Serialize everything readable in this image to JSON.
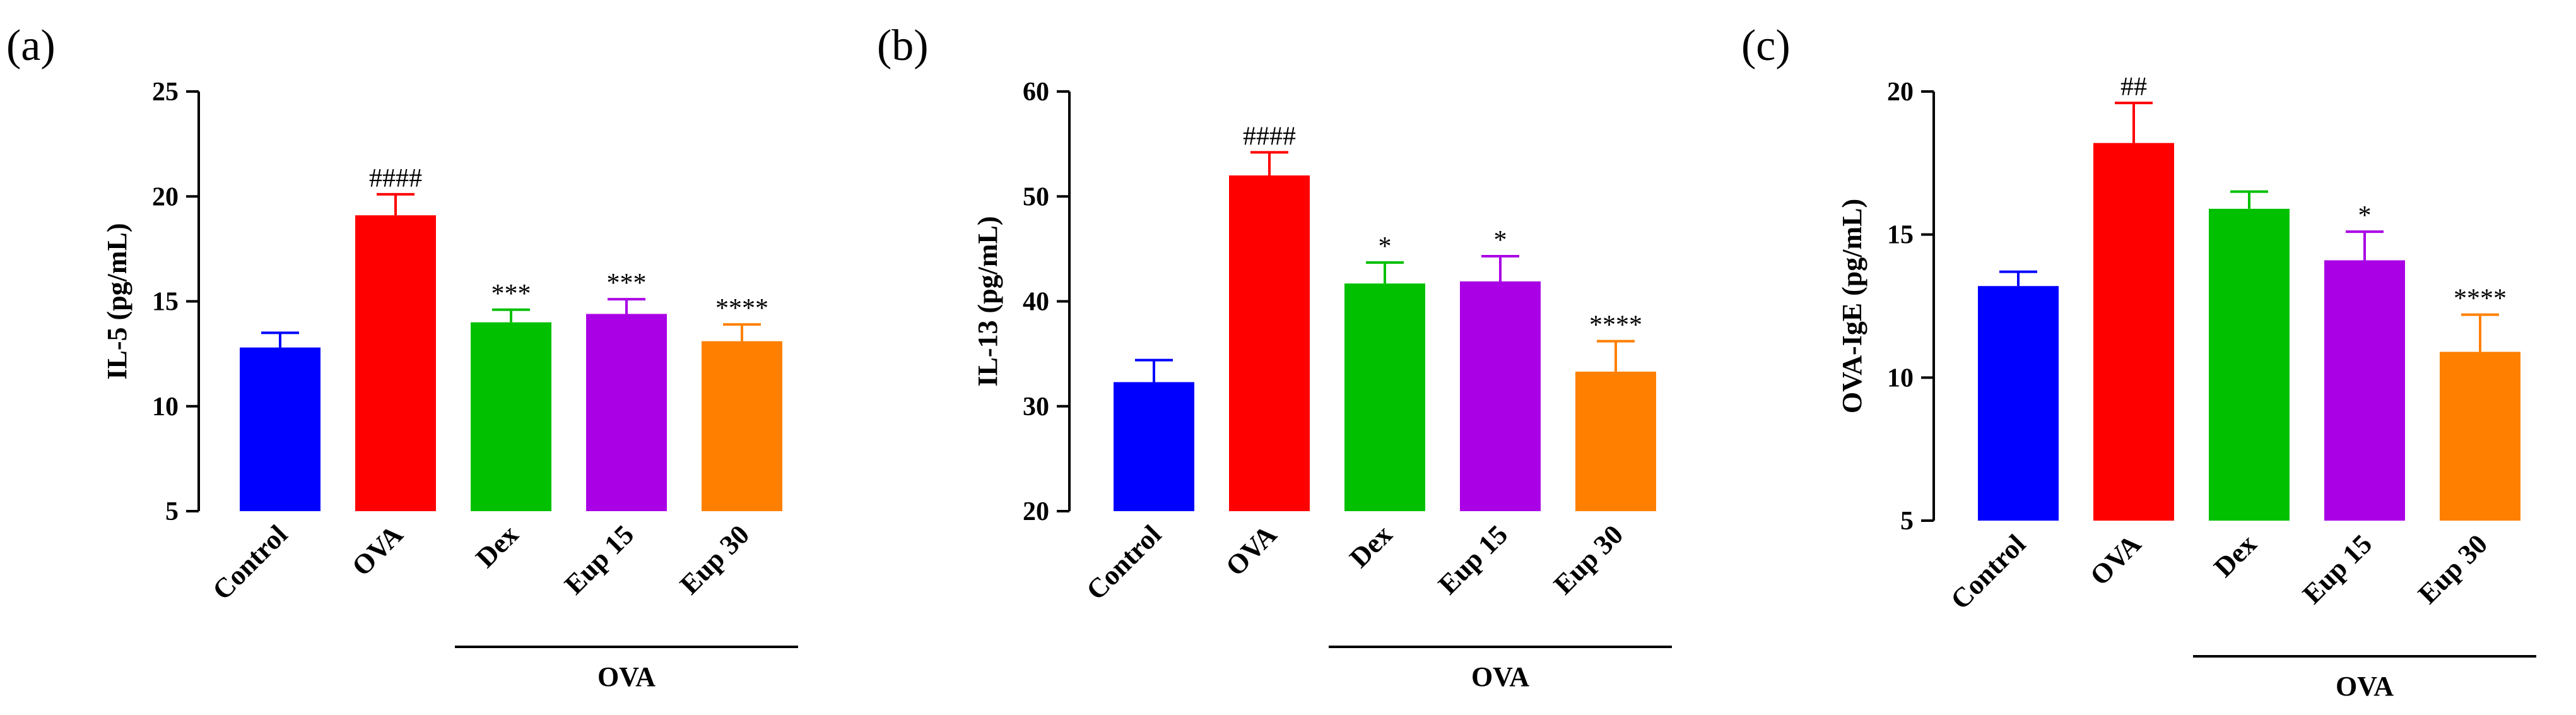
{
  "chart_data": [
    {
      "type": "bar",
      "panel": "(a)",
      "ylabel": "IL-5 (pg/mL)",
      "ylim": [
        5,
        25
      ],
      "yticks": [
        5,
        10,
        15,
        20,
        25
      ],
      "categories": [
        "Control",
        "OVA",
        "Dex",
        "Eup 15",
        "Eup 30"
      ],
      "values": [
        12.8,
        19.1,
        14.0,
        14.4,
        13.1
      ],
      "errors": [
        0.7,
        1.0,
        0.6,
        0.7,
        0.8
      ],
      "annotations": [
        "",
        "####",
        "***",
        "***",
        "****"
      ],
      "colors": [
        "#0000ff",
        "#ff0000",
        "#00c000",
        "#aa00e6",
        "#ff8000"
      ],
      "group_label": "OVA"
    },
    {
      "type": "bar",
      "panel": "(b)",
      "ylabel": "IL-13 (pg/mL)",
      "ylim": [
        20,
        60
      ],
      "yticks": [
        20,
        30,
        40,
        50,
        60
      ],
      "categories": [
        "Control",
        "OVA",
        "Dex",
        "Eup 15",
        "Eup 30"
      ],
      "values": [
        32.3,
        52.0,
        41.7,
        41.9,
        33.3
      ],
      "errors": [
        2.1,
        2.2,
        2.0,
        2.4,
        2.9
      ],
      "annotations": [
        "",
        "####",
        "*",
        "*",
        "****"
      ],
      "colors": [
        "#0000ff",
        "#ff0000",
        "#00c000",
        "#aa00e6",
        "#ff8000"
      ],
      "group_label": "OVA"
    },
    {
      "type": "bar",
      "panel": "(c)",
      "ylabel": "OVA-IgE (pg/mL)",
      "ylim": [
        5,
        20
      ],
      "yticks": [
        5,
        10,
        15,
        20
      ],
      "categories": [
        "Control",
        "OVA",
        "Dex",
        "Eup 15",
        "Eup 30"
      ],
      "values": [
        13.2,
        18.2,
        15.9,
        14.1,
        10.9
      ],
      "errors": [
        0.5,
        1.4,
        0.6,
        1.0,
        1.3
      ],
      "annotations": [
        "",
        "##",
        "",
        "*",
        "****"
      ],
      "colors": [
        "#0000ff",
        "#ff0000",
        "#00c000",
        "#aa00e6",
        "#ff8000"
      ],
      "group_label": "OVA"
    }
  ]
}
